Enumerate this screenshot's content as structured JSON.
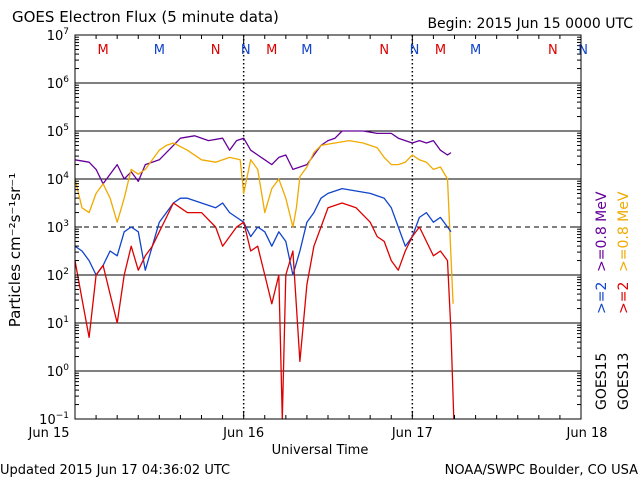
{
  "chart_data": {
    "type": "line",
    "title": "GOES Electron Flux (5 minute data)",
    "begin_label": "Begin: 2015 Jun 15 0000 UTC",
    "xlabel": "Universal Time",
    "ylabel": "Particles cm⁻²s⁻¹sr⁻¹",
    "x_unit": "hours since 2015 Jun 15 0000 UTC",
    "xlim": [
      0,
      72
    ],
    "x_ticks": [
      {
        "x": 0,
        "label": "Jun 15"
      },
      {
        "x": 24,
        "label": "Jun 16"
      },
      {
        "x": 48,
        "label": "Jun 17"
      },
      {
        "x": 72,
        "label": "Jun 18"
      }
    ],
    "y_scale": "log",
    "ylim_exponent": [
      -1,
      7
    ],
    "y_ticks": [
      {
        "exp": -1,
        "base": "10",
        "sup": "−1"
      },
      {
        "exp": 0,
        "base": "10",
        "sup": "0"
      },
      {
        "exp": 1,
        "base": "10",
        "sup": "1"
      },
      {
        "exp": 2,
        "base": "10",
        "sup": "2"
      },
      {
        "exp": 3,
        "base": "10",
        "sup": "3"
      },
      {
        "exp": 4,
        "base": "10",
        "sup": "4"
      },
      {
        "exp": 5,
        "base": "10",
        "sup": "5"
      },
      {
        "exp": 6,
        "base": "10",
        "sup": "6"
      },
      {
        "exp": 7,
        "base": "10",
        "sup": "7"
      }
    ],
    "solid_gridlines_exp": [
      0,
      1,
      2,
      4,
      5,
      6
    ],
    "dashed_gridlines_exp": [
      3
    ],
    "markers": [
      {
        "x": 4,
        "text": "M",
        "color": "#dd0000"
      },
      {
        "x": 12,
        "text": "M",
        "color": "#1144cc"
      },
      {
        "x": 20,
        "text": "N",
        "color": "#dd0000"
      },
      {
        "x": 24.3,
        "text": "N",
        "color": "#1144cc"
      },
      {
        "x": 28,
        "text": "M",
        "color": "#dd0000"
      },
      {
        "x": 33,
        "text": "M",
        "color": "#1144cc"
      },
      {
        "x": 44,
        "text": "N",
        "color": "#dd0000"
      },
      {
        "x": 48.3,
        "text": "N",
        "color": "#1144cc"
      },
      {
        "x": 52,
        "text": "M",
        "color": "#dd0000"
      },
      {
        "x": 57,
        "text": "M",
        "color": "#1144cc"
      },
      {
        "x": 68,
        "text": "N",
        "color": "#dd0000"
      },
      {
        "x": 72.3,
        "text": "N",
        "color": "#1144cc"
      }
    ],
    "series": [
      {
        "name": "GOES15 >=0.8 MeV",
        "color": "#660099",
        "x": [
          0,
          2,
          3,
          4,
          5,
          6,
          7,
          8,
          9,
          10,
          12,
          13,
          14,
          15,
          17,
          19,
          21,
          22,
          23,
          24,
          25,
          26,
          27,
          28,
          29,
          30,
          31,
          33,
          34,
          35,
          36,
          37,
          38,
          39,
          41,
          43,
          45,
          46,
          47,
          48,
          49,
          50,
          51,
          52,
          53,
          53.5
        ],
        "log10": [
          4.4,
          4.35,
          4.2,
          3.9,
          4.1,
          4.3,
          4.0,
          4.15,
          3.95,
          4.3,
          4.4,
          4.55,
          4.7,
          4.85,
          4.9,
          4.8,
          4.85,
          4.6,
          4.8,
          4.85,
          4.6,
          4.5,
          4.4,
          4.3,
          4.45,
          4.5,
          4.2,
          4.3,
          4.5,
          4.7,
          4.8,
          4.85,
          5.0,
          5.0,
          5.0,
          4.95,
          4.95,
          4.85,
          4.8,
          4.75,
          4.8,
          4.75,
          4.8,
          4.6,
          4.5,
          4.55
        ]
      },
      {
        "name": "GOES13 >=0.8 MeV",
        "color": "#f0aa00",
        "x": [
          0,
          1,
          2,
          3,
          4,
          5,
          6,
          7,
          8,
          9,
          10,
          11,
          12,
          13,
          14,
          16,
          18,
          20,
          22,
          23.5,
          24,
          25,
          26,
          27,
          28,
          29,
          30,
          31,
          31.5,
          32,
          33,
          34,
          35,
          37,
          39,
          41,
          43,
          44,
          45,
          46,
          47,
          48,
          49,
          50,
          51,
          52,
          53,
          53.8
        ],
        "log10": [
          4.0,
          3.4,
          3.3,
          3.7,
          3.9,
          3.6,
          3.1,
          3.6,
          4.2,
          4.1,
          4.2,
          4.4,
          4.6,
          4.7,
          4.75,
          4.6,
          4.4,
          4.35,
          4.45,
          4.4,
          3.7,
          4.4,
          4.2,
          3.3,
          3.8,
          4.0,
          3.6,
          3.0,
          3.4,
          4.05,
          4.25,
          4.55,
          4.7,
          4.75,
          4.8,
          4.75,
          4.65,
          4.45,
          4.3,
          4.3,
          4.35,
          4.5,
          4.4,
          4.35,
          4.2,
          4.25,
          4.0,
          1.4
        ]
      },
      {
        "name": "GOES15 >=2 MeV",
        "color": "#1144cc",
        "x": [
          0,
          1,
          2,
          3,
          4,
          5,
          6,
          7,
          8,
          9,
          10,
          11,
          12,
          13,
          14,
          15,
          16,
          18,
          20,
          21,
          22,
          23,
          24,
          25,
          26,
          27,
          28,
          29,
          30,
          31,
          32,
          33,
          34,
          35,
          36,
          38,
          40,
          42,
          44,
          45,
          46,
          47,
          48,
          49,
          50,
          51,
          52,
          53,
          53.5
        ],
        "log10": [
          2.6,
          2.5,
          2.3,
          2.0,
          2.2,
          2.5,
          2.4,
          2.9,
          3.0,
          2.9,
          2.1,
          2.6,
          3.1,
          3.3,
          3.5,
          3.6,
          3.6,
          3.5,
          3.4,
          3.5,
          3.3,
          3.2,
          3.1,
          2.8,
          3.0,
          2.9,
          2.6,
          2.9,
          2.7,
          2.0,
          2.5,
          3.1,
          3.3,
          3.6,
          3.7,
          3.8,
          3.75,
          3.7,
          3.6,
          3.4,
          3.0,
          2.6,
          2.8,
          3.2,
          3.3,
          3.1,
          3.2,
          3.0,
          2.9
        ]
      },
      {
        "name": "GOES13 >=2 MeV",
        "color": "#dd0000",
        "x": [
          0,
          1,
          2,
          3,
          4,
          5,
          6,
          7,
          8,
          9,
          10,
          11,
          12,
          13,
          14,
          15,
          16,
          18,
          20,
          21,
          22,
          23,
          24,
          25,
          26,
          27,
          28,
          29,
          29.5,
          30,
          31,
          32,
          33,
          34,
          35,
          36,
          38,
          40,
          42,
          43,
          44,
          45,
          46,
          47,
          48,
          49,
          50,
          51,
          52,
          53,
          53.5,
          53.9
        ],
        "log10": [
          2.3,
          1.5,
          0.7,
          2.0,
          2.2,
          1.6,
          1.0,
          2.0,
          2.6,
          2.1,
          2.4,
          2.6,
          2.9,
          3.2,
          3.5,
          3.4,
          3.3,
          3.3,
          3.0,
          2.6,
          2.8,
          3.0,
          3.1,
          2.5,
          2.6,
          2.0,
          1.4,
          2.0,
          -1.0,
          2.0,
          2.5,
          0.2,
          1.8,
          2.6,
          3.0,
          3.4,
          3.5,
          3.4,
          3.1,
          2.8,
          2.7,
          2.3,
          2.1,
          2.5,
          2.8,
          3.0,
          2.7,
          2.4,
          2.5,
          2.3,
          0.8,
          -1.0
        ]
      }
    ],
    "right_legend": [
      {
        "text": "GOES15",
        "color": "#000000",
        "row": 0,
        "col": 0
      },
      {
        "text": ">=2",
        "color": "#1144cc",
        "row": 0,
        "col": 1
      },
      {
        "text": ">=0.8 MeV",
        "color": "#660099",
        "row": 0,
        "col": 2
      },
      {
        "text": "GOES13",
        "color": "#000000",
        "row": 1,
        "col": 0
      },
      {
        "text": ">=2",
        "color": "#dd0000",
        "row": 1,
        "col": 1
      },
      {
        "text": ">=0.8 MeV",
        "color": "#f0aa00",
        "row": 1,
        "col": 2
      }
    ]
  },
  "footer": {
    "updated": "Updated 2015 Jun 17 04:36:02 UTC",
    "credit": "NOAA/SWPC Boulder, CO USA"
  }
}
